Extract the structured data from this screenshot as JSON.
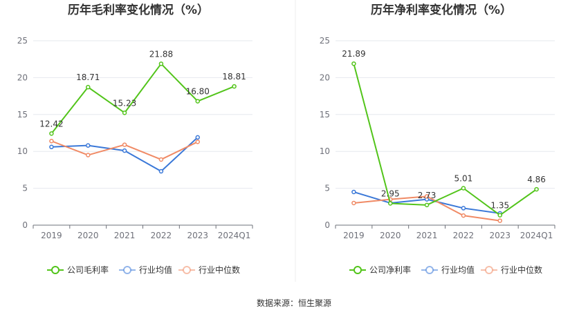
{
  "source_text": "数据来源：恒生聚源",
  "colors": {
    "company": "#52c41a",
    "industry_avg": "#3a78d8",
    "industry_median": "#f08a65",
    "grid": "#e6e8ee",
    "axis": "#6e7079"
  },
  "chart_data": [
    {
      "type": "line",
      "title": "历年毛利率变化情况（%）",
      "categories": [
        "2019",
        "2020",
        "2021",
        "2022",
        "2023",
        "2024Q1"
      ],
      "ylim": [
        0,
        25
      ],
      "yticks": [
        0,
        5,
        10,
        15,
        20,
        25
      ],
      "grid": true,
      "legend_position": "bottom",
      "series": [
        {
          "name": "公司毛利率",
          "key": "company",
          "values": [
            12.42,
            18.71,
            15.23,
            21.88,
            16.8,
            18.81
          ],
          "labels": [
            "12.42",
            "18.71",
            "15.23",
            "21.88",
            "16.80",
            "18.81"
          ]
        },
        {
          "name": "行业均值",
          "key": "industry_avg",
          "values": [
            10.6,
            10.8,
            10.1,
            7.3,
            11.9,
            null
          ]
        },
        {
          "name": "行业中位数",
          "key": "industry_median",
          "values": [
            11.4,
            9.5,
            10.9,
            8.9,
            11.3,
            null
          ]
        }
      ]
    },
    {
      "type": "line",
      "title": "历年净利率变化情况（%）",
      "categories": [
        "2019",
        "2020",
        "2021",
        "2022",
        "2023",
        "2024Q1"
      ],
      "ylim": [
        0,
        25
      ],
      "yticks": [
        0,
        5,
        10,
        15,
        20,
        25
      ],
      "grid": true,
      "legend_position": "bottom",
      "series": [
        {
          "name": "公司净利率",
          "key": "company",
          "values": [
            21.89,
            2.95,
            2.73,
            5.01,
            1.35,
            4.86
          ],
          "labels": [
            "21.89",
            "2.95",
            "2.73",
            "5.01",
            "1.35",
            "4.86"
          ]
        },
        {
          "name": "行业均值",
          "key": "industry_avg",
          "values": [
            4.5,
            3.0,
            3.5,
            2.3,
            1.6,
            null
          ]
        },
        {
          "name": "行业中位数",
          "key": "industry_median",
          "values": [
            3.0,
            3.5,
            3.9,
            1.3,
            0.6,
            null
          ]
        }
      ]
    }
  ]
}
